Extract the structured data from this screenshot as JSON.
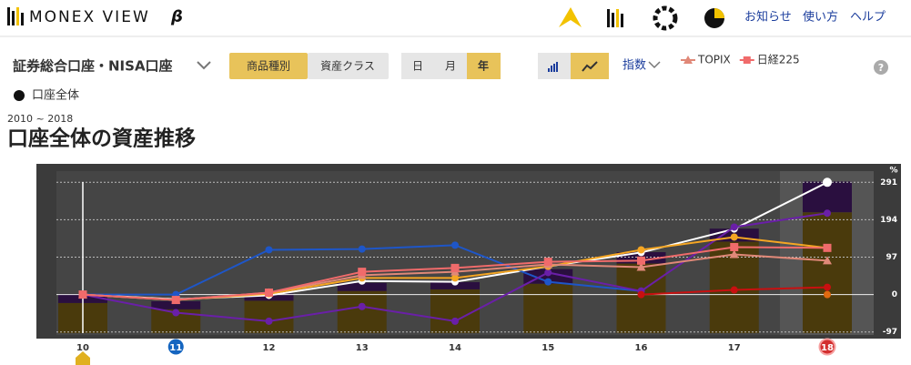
{
  "header": {
    "logo": "MONEX VIEW",
    "logo_beta": "β",
    "links": [
      "お知らせ",
      "使い方",
      "ヘルプ"
    ]
  },
  "toolbar": {
    "account": "証券総合口座・NISA口座",
    "tabs": [
      "商品種別",
      "資産クラス"
    ],
    "periods": [
      "日",
      "月",
      "年"
    ],
    "index_menu": "指数"
  },
  "portfolio": "口座全体",
  "period_label": "2010 ~ 2018",
  "heading": "口座全体の資産推移",
  "chart_data": {
    "type": "line",
    "categories": [
      "10",
      "11",
      "12",
      "13",
      "14",
      "15",
      "16",
      "17",
      "18"
    ],
    "category_badges": [
      null,
      "#1565c0",
      null,
      null,
      null,
      null,
      null,
      null,
      "#d32f2f"
    ],
    "y_unit": "%",
    "ylim": [
      -100,
      320
    ],
    "yticks": [
      291,
      194,
      97,
      0,
      -97
    ],
    "y2lim": [
      0,
      100
    ],
    "grid": true,
    "series": [
      {
        "kind": "bar",
        "axis": "y2",
        "color": "#4a3a0c",
        "values": [
          18.6,
          14.7,
          20,
          26,
          27,
          30.5,
          43,
          56.5,
          74.6
        ]
      },
      {
        "kind": "bar",
        "axis": "y2",
        "color": "#2a0f3f",
        "values": [
          5.6,
          5,
          4.5,
          5,
          4.5,
          9,
          7,
          8,
          19
        ]
      },
      {
        "kind": "line",
        "color": "#ffffff",
        "marker": "circle",
        "values": [
          0,
          -12,
          -2,
          35,
          33,
          73,
          109,
          170,
          291
        ]
      },
      {
        "kind": "line",
        "color": "#1e56c8",
        "marker": "circle",
        "values": [
          0,
          0,
          116,
          118,
          128,
          33,
          9,
          null,
          null
        ]
      },
      {
        "kind": "line",
        "color": "#6a1fa8",
        "marker": "circle",
        "values": [
          0,
          -47,
          -69,
          -31,
          -69,
          57,
          9,
          175,
          211
        ]
      },
      {
        "kind": "line",
        "color": "#f5a623",
        "marker": "circle",
        "values": [
          0,
          -14,
          2,
          43,
          43,
          73,
          116,
          149,
          121
        ]
      },
      {
        "kind": "line",
        "name": "TOPIX",
        "color": "#e08878",
        "marker": "triangle",
        "values": [
          0,
          -14,
          5,
          50,
          59,
          78,
          71,
          104,
          88
        ]
      },
      {
        "kind": "line",
        "name": "日経225",
        "color": "#f06b6b",
        "marker": "square",
        "values": [
          0,
          -14,
          5,
          59,
          69,
          85,
          88,
          123,
          121
        ]
      },
      {
        "kind": "line",
        "color": "#c81010",
        "marker": "circle",
        "values": [
          null,
          null,
          null,
          null,
          null,
          null,
          0,
          12,
          19
        ]
      },
      {
        "kind": "line",
        "color": "#e06a10",
        "marker": "circle",
        "values": [
          null,
          null,
          null,
          null,
          null,
          null,
          null,
          null,
          0
        ]
      }
    ]
  }
}
